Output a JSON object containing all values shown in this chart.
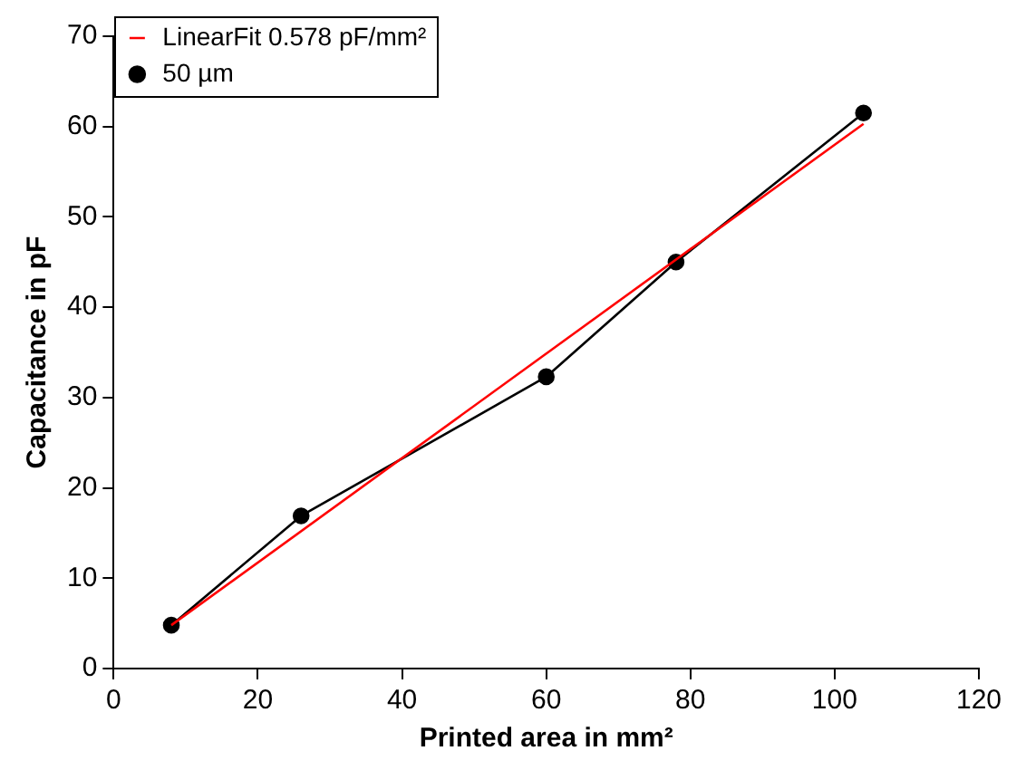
{
  "chart_data": {
    "type": "line",
    "xlabel": "Printed area in mm²",
    "ylabel": "Capacitance in pF",
    "xlim": [
      0,
      120
    ],
    "ylim": [
      0,
      70
    ],
    "xticks": [
      0,
      20,
      40,
      60,
      80,
      100,
      120
    ],
    "yticks": [
      0,
      10,
      20,
      30,
      40,
      50,
      60,
      70
    ],
    "grid": false,
    "legend": "top left",
    "series": [
      {
        "name": "50 µm",
        "color": "#000000",
        "x": [
          8,
          26,
          60,
          78,
          104
        ],
        "values": [
          4.8,
          16.9,
          32.3,
          45,
          61.5
        ],
        "marker": "circle"
      },
      {
        "name": "LinearFit 0.578 pF/mm²",
        "color": "#ff0000",
        "x": [
          8,
          104
        ],
        "values": [
          4.8,
          60.3
        ],
        "marker": "none"
      }
    ]
  }
}
